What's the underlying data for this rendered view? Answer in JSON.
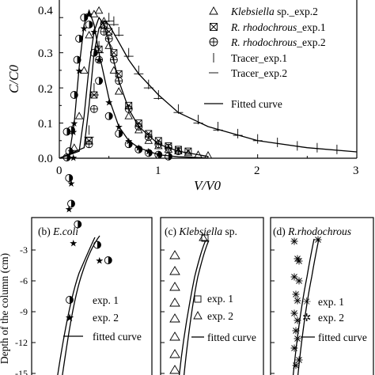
{
  "chart_data": [
    {
      "type": "scatter",
      "panel": "top",
      "xlabel": "V/V0",
      "ylabel": "C/C0",
      "xlim": [
        0,
        3
      ],
      "ylim": [
        0,
        0.45
      ],
      "xticks": [
        "0",
        "1",
        "2",
        "3"
      ],
      "yticks": [
        "0.0",
        "0.1",
        "0.2",
        "0.3",
        "0.4"
      ],
      "legend": [
        {
          "marker": "triangle",
          "label_italic": "Klebsiella",
          "label_rest": " sp._exp.2"
        },
        {
          "marker": "boxed-x",
          "label_italic": "R. rhodochrous",
          "label_rest": "_exp.1"
        },
        {
          "marker": "circled-plus",
          "label_italic": "R. rhodochrous",
          "label_rest": "_exp.2"
        },
        {
          "marker": "vbar",
          "label_italic": "",
          "label_rest": "Tracer_exp.1"
        },
        {
          "marker": "hbar",
          "label_italic": "",
          "label_rest": "Tracer_exp.2"
        },
        {
          "marker": "line",
          "label_italic": "",
          "label_rest": "Fitted curve"
        }
      ],
      "series": [
        {
          "name": "Klebsiella sp._exp.2",
          "marker": "triangle",
          "x": [
            0.15,
            0.2,
            0.25,
            0.3,
            0.35,
            0.4,
            0.45,
            0.5,
            0.55,
            0.6,
            0.7,
            0.8,
            0.9,
            1.0,
            1.1,
            1.2,
            1.3,
            1.4,
            1.5
          ],
          "y": [
            0.03,
            0.12,
            0.25,
            0.35,
            0.41,
            0.42,
            0.39,
            0.32,
            0.25,
            0.19,
            0.12,
            0.08,
            0.05,
            0.035,
            0.025,
            0.02,
            0.015,
            0.01,
            0.008
          ]
        },
        {
          "name": "R. rhodochrous_exp.1",
          "marker": "boxed-x",
          "x": [
            0.3,
            0.35,
            0.4,
            0.45,
            0.5,
            0.55,
            0.6,
            0.7,
            0.8,
            0.9,
            1.0,
            1.1,
            1.2,
            1.3
          ],
          "y": [
            0.05,
            0.18,
            0.31,
            0.38,
            0.36,
            0.3,
            0.24,
            0.15,
            0.1,
            0.07,
            0.05,
            0.035,
            0.025,
            0.02
          ]
        },
        {
          "name": "R. rhodochrous_exp.2",
          "marker": "circled-plus",
          "x": [
            0.3,
            0.35,
            0.4,
            0.45,
            0.5,
            0.55,
            0.6,
            0.7,
            0.8,
            0.9,
            1.0,
            1.1,
            1.2
          ],
          "y": [
            0.04,
            0.14,
            0.28,
            0.36,
            0.34,
            0.28,
            0.22,
            0.14,
            0.09,
            0.06,
            0.04,
            0.03,
            0.02
          ]
        },
        {
          "name": "Tracer_exp.1",
          "marker": "vbar",
          "x": [
            0.3,
            0.35,
            0.4,
            0.45,
            0.5,
            0.55,
            0.6,
            0.7,
            0.8,
            0.9,
            1.0,
            1.2,
            1.4,
            1.6,
            1.8,
            2.0,
            2.2,
            2.4,
            2.6,
            2.8,
            3.0
          ],
          "y": [
            0.08,
            0.2,
            0.32,
            0.38,
            0.4,
            0.39,
            0.36,
            0.3,
            0.25,
            0.21,
            0.18,
            0.14,
            0.11,
            0.09,
            0.07,
            0.055,
            0.045,
            0.035,
            0.03,
            0.025,
            0.02
          ]
        },
        {
          "name": "Tracer_exp.2",
          "marker": "hbar",
          "x": [
            0.3,
            0.35,
            0.4,
            0.45,
            0.5,
            0.55,
            0.6,
            0.7,
            0.8,
            0.9,
            1.0,
            1.2,
            1.4,
            1.6,
            1.8,
            2.0
          ],
          "y": [
            0.06,
            0.18,
            0.3,
            0.37,
            0.39,
            0.38,
            0.35,
            0.29,
            0.24,
            0.2,
            0.17,
            0.13,
            0.1,
            0.08,
            0.065,
            0.05
          ]
        },
        {
          "name": "E. coli / circles",
          "marker": "circle-half",
          "x": [
            0.1,
            0.12,
            0.15,
            0.18,
            0.2,
            0.25,
            0.3,
            0.35,
            0.4,
            0.5,
            0.6,
            0.7,
            0.8,
            0.9,
            1.0,
            1.1
          ],
          "y": [
            0.02,
            0.08,
            0.18,
            0.28,
            0.34,
            0.4,
            0.38,
            0.3,
            0.22,
            0.12,
            0.07,
            0.04,
            0.025,
            0.015,
            0.01,
            0.005
          ]
        },
        {
          "name": "E. coli / stars",
          "marker": "star",
          "x": [
            0.12,
            0.15,
            0.2,
            0.25,
            0.3,
            0.35,
            0.4,
            0.5,
            0.6,
            0.7,
            0.8,
            0.9,
            1.0
          ],
          "y": [
            0.02,
            0.1,
            0.25,
            0.37,
            0.41,
            0.36,
            0.28,
            0.16,
            0.09,
            0.05,
            0.03,
            0.02,
            0.012
          ]
        }
      ],
      "fitted": [
        {
          "x": [
            0,
            0.1,
            0.15,
            0.2,
            0.25,
            0.3,
            0.35,
            0.4,
            0.5,
            0.6,
            0.7,
            0.8,
            1.0,
            1.2,
            1.5
          ],
          "y": [
            0,
            0.01,
            0.1,
            0.26,
            0.38,
            0.42,
            0.38,
            0.3,
            0.17,
            0.09,
            0.05,
            0.03,
            0.01,
            0.004,
            0.001
          ]
        },
        {
          "x": [
            0,
            0.2,
            0.25,
            0.3,
            0.35,
            0.4,
            0.45,
            0.5,
            0.6,
            0.7,
            0.8,
            1.0,
            1.2,
            1.5
          ],
          "y": [
            0,
            0.02,
            0.12,
            0.26,
            0.36,
            0.4,
            0.38,
            0.33,
            0.22,
            0.14,
            0.09,
            0.04,
            0.02,
            0.005
          ]
        },
        {
          "x": [
            0,
            0.25,
            0.3,
            0.35,
            0.4,
            0.45,
            0.5,
            0.6,
            0.7,
            0.8,
            1.0,
            1.2,
            1.5,
            2.0,
            2.5,
            3.0
          ],
          "y": [
            0,
            0.03,
            0.15,
            0.3,
            0.37,
            0.39,
            0.38,
            0.33,
            0.28,
            0.24,
            0.18,
            0.13,
            0.09,
            0.05,
            0.03,
            0.018
          ]
        }
      ]
    },
    {
      "type": "scatter",
      "panel": "b",
      "title_prefix": "(b) ",
      "title_italic": "E.coli",
      "ylabel": "Depth of the column (cm)",
      "yticks": [
        "-3",
        "-6",
        "-9",
        "-12",
        "-15"
      ],
      "legend": [
        {
          "marker": "circle-half",
          "label": "exp. 1"
        },
        {
          "marker": "star",
          "label": "exp. 2"
        },
        {
          "marker": "line",
          "label": "fitted curve"
        }
      ],
      "series": [
        {
          "name": "exp. 1",
          "marker": "circle-half",
          "x": [
            0.85,
            0.6,
            0.15,
            0.0,
            -0.05,
            -0.1,
            -0.1
          ],
          "y": [
            -2,
            -3.5,
            -5.5,
            -7.5,
            -10,
            -12,
            -14.5
          ]
        },
        {
          "name": "exp. 2",
          "marker": "star",
          "x": [
            0.65,
            0.05,
            -0.05,
            0.0,
            0.05,
            0.05
          ],
          "y": [
            -2,
            -3.7,
            -7,
            -9.5,
            -12,
            -14.5
          ]
        }
      ]
    },
    {
      "type": "scatter",
      "panel": "c",
      "title_prefix": "(c) ",
      "title_italic": "Klebsiella",
      "title_rest": " sp.",
      "legend": [
        {
          "marker": "square",
          "label": "exp. 1"
        },
        {
          "marker": "triangle",
          "label": "exp. 2"
        },
        {
          "marker": "line",
          "label": "fitted curve"
        }
      ]
    },
    {
      "type": "scatter",
      "panel": "d",
      "title_prefix": "(d) ",
      "title_italic": "R.rhodochrous",
      "legend": [
        {
          "marker": "asterisk",
          "label": "exp. 1"
        },
        {
          "marker": "starx",
          "label": "exp. 2"
        },
        {
          "marker": "line",
          "label": "fitted curve"
        }
      ]
    }
  ]
}
